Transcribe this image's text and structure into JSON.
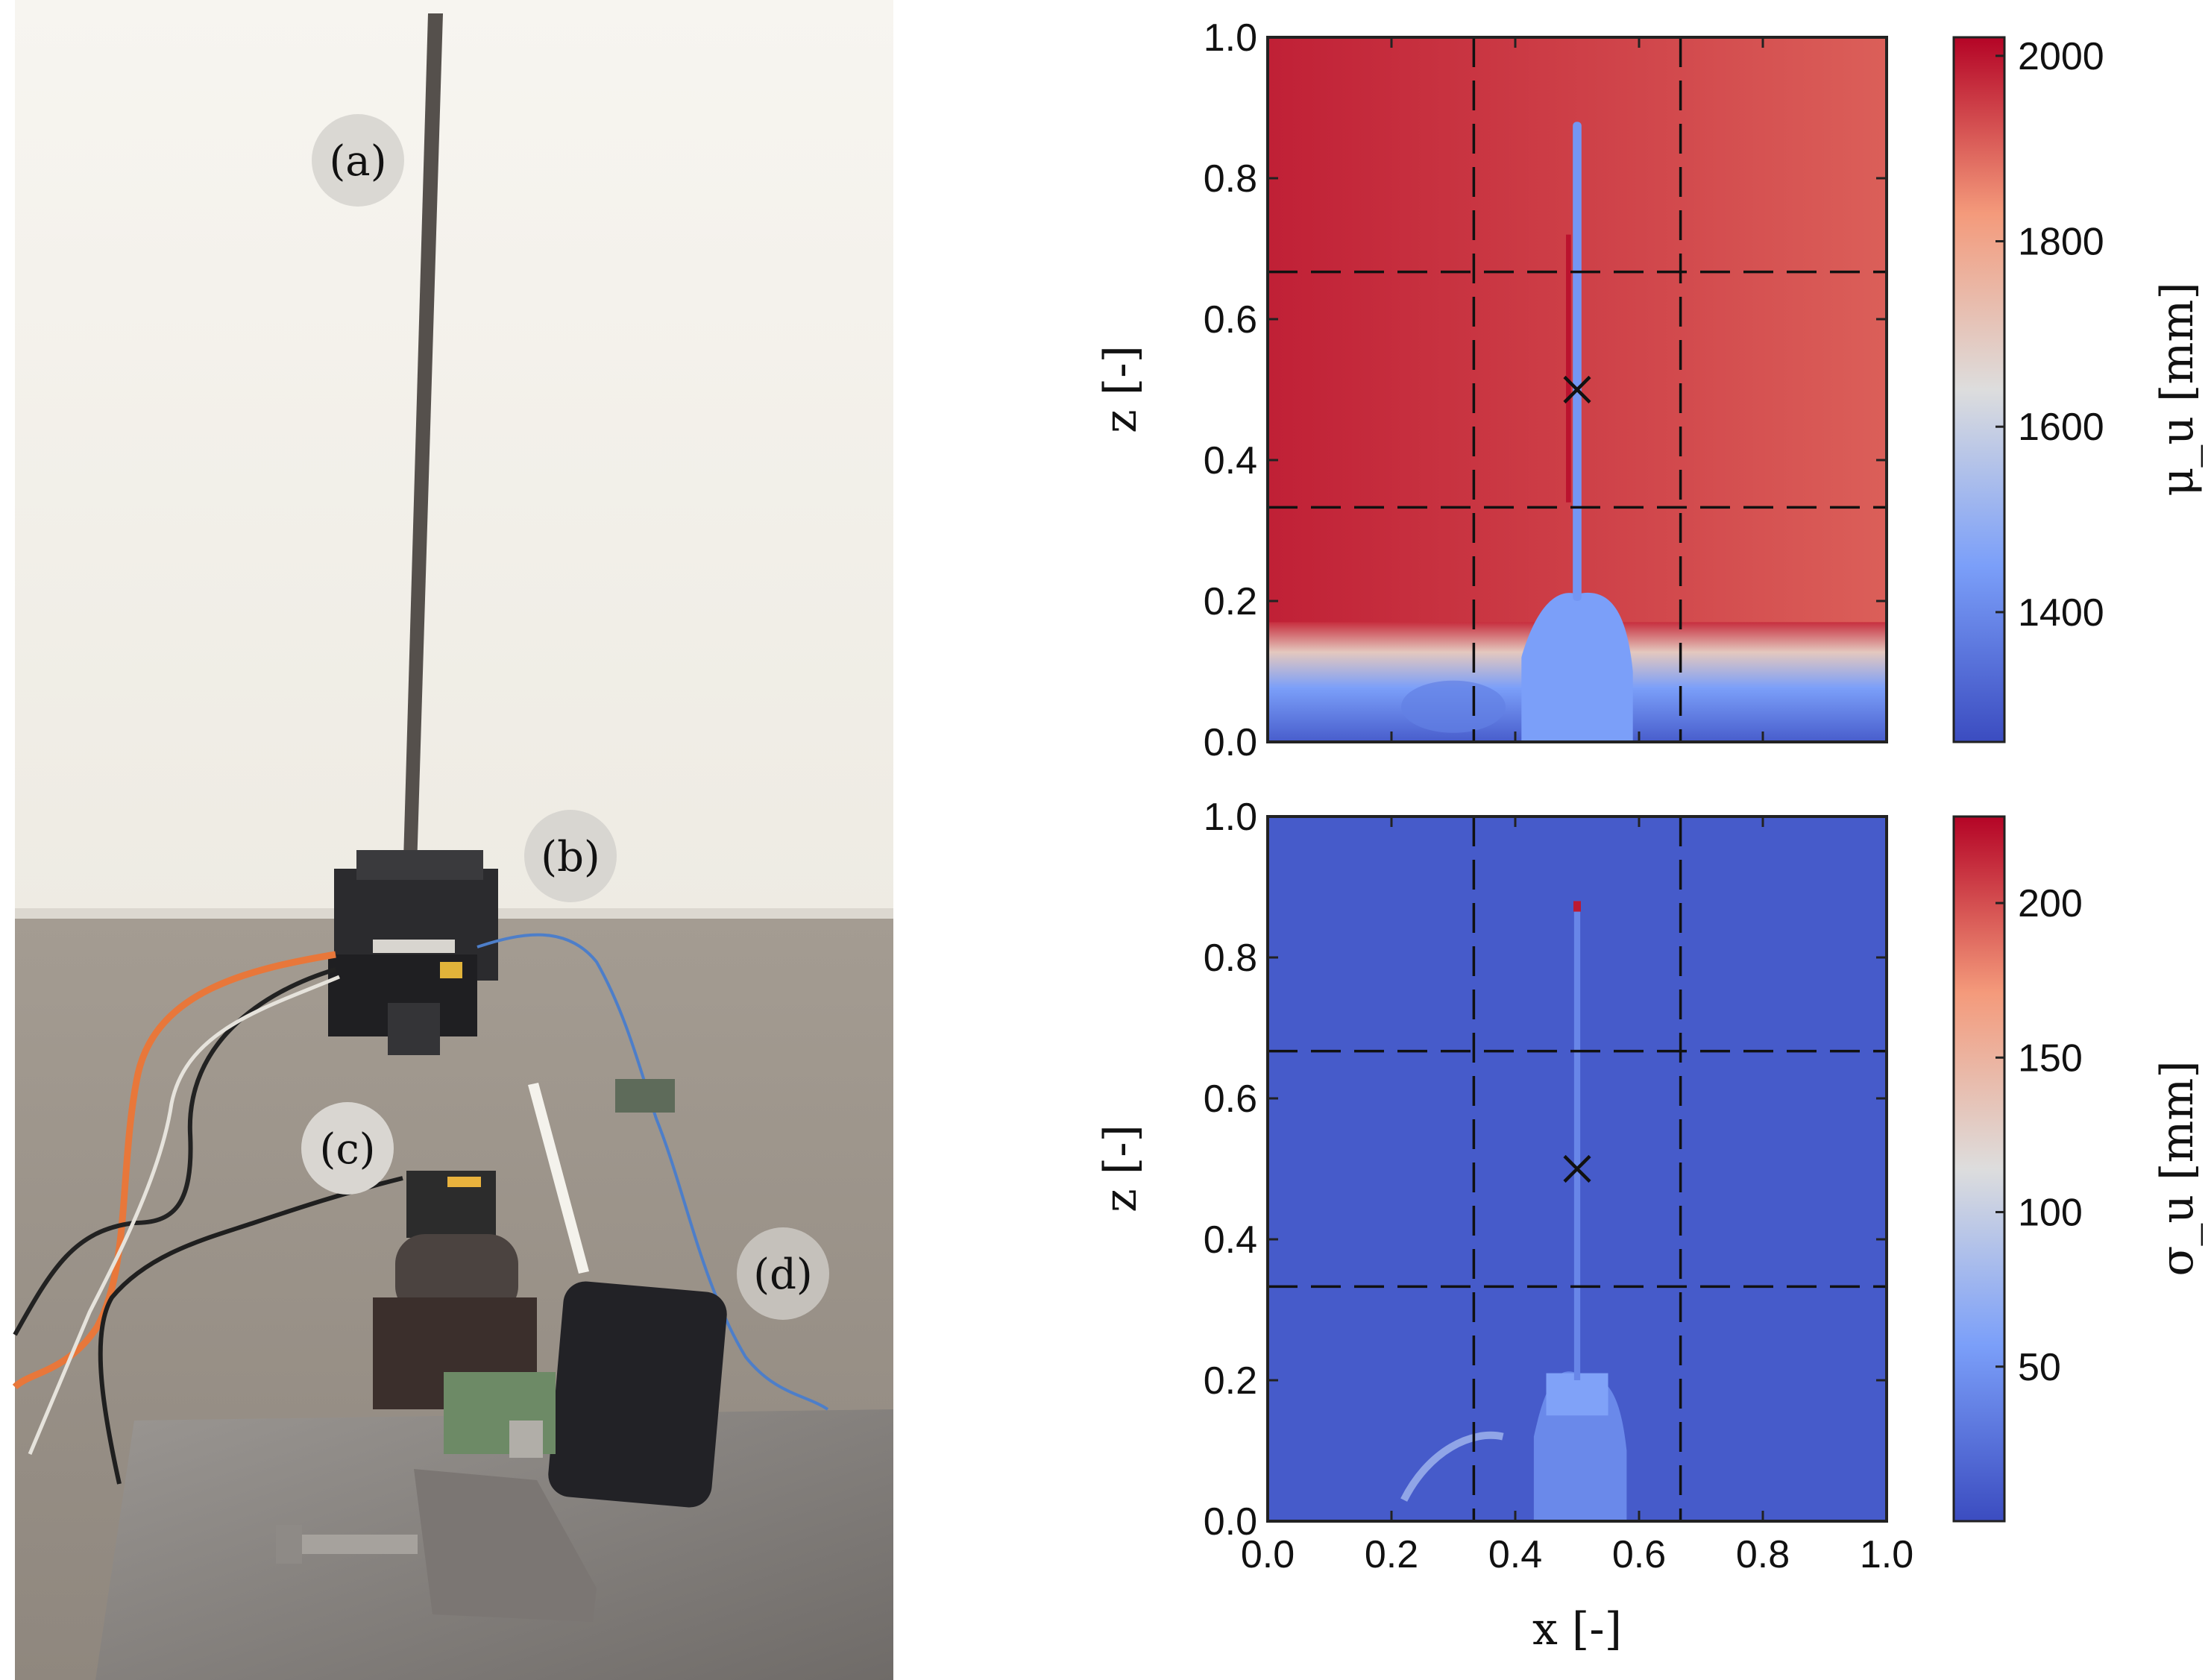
{
  "photo": {
    "callouts": [
      {
        "id": "a",
        "label": "(a)"
      },
      {
        "id": "b",
        "label": "(b)"
      },
      {
        "id": "c",
        "label": "(c)"
      },
      {
        "id": "d",
        "label": "(d)"
      }
    ],
    "colors": {
      "wall": "#f4f2ec",
      "floor": "#9d958b",
      "plate": "#8b8784",
      "rod": "#4a4744",
      "cable": "#e8773a",
      "blue_cable": "#4d7ec9"
    }
  },
  "chart_data": [
    {
      "type": "heatmap",
      "panel": "top",
      "quantity": "mu_u",
      "xlabel": "x [-]",
      "ylabel": "z [-]",
      "xlim": [
        0.0,
        1.0
      ],
      "ylim": [
        0.0,
        1.0
      ],
      "xticks": [
        "0.0",
        "0.2",
        "0.4",
        "0.6",
        "0.8",
        "1.0"
      ],
      "yticks": [
        "0.0",
        "0.2",
        "0.4",
        "0.6",
        "0.8",
        "1.0"
      ],
      "show_xtick_labels": false,
      "colorbar": {
        "label": "μ_u [mm]",
        "min": 1260,
        "max": 2020,
        "ticks": [
          1400,
          1600,
          1800,
          2000
        ],
        "tick_labels": [
          "1400",
          "1600",
          "1800",
          "2000"
        ]
      },
      "dashed_lines": {
        "x": [
          0.333,
          0.667
        ],
        "z": [
          0.333,
          0.667
        ]
      },
      "marker": {
        "x": 0.5,
        "z": 0.5,
        "symbol": "×"
      },
      "field": {
        "background": 1965,
        "bottom": 1300,
        "rod": 1430,
        "rod_x": 0.5,
        "rod_top": 0.88,
        "base_region": 1450
      }
    },
    {
      "type": "heatmap",
      "panel": "bottom",
      "quantity": "sigma_u",
      "xlabel": "x [-]",
      "ylabel": "z [-]",
      "xlim": [
        0.0,
        1.0
      ],
      "ylim": [
        0.0,
        1.0
      ],
      "xticks": [
        "0.0",
        "0.2",
        "0.4",
        "0.6",
        "0.8",
        "1.0"
      ],
      "yticks": [
        "0.0",
        "0.2",
        "0.4",
        "0.6",
        "0.8",
        "1.0"
      ],
      "show_xtick_labels": true,
      "colorbar": {
        "label": "σ_u [mm]",
        "min": 0,
        "max": 228,
        "ticks": [
          50,
          100,
          150,
          200
        ],
        "tick_labels": [
          "50",
          "100",
          "150",
          "200"
        ]
      },
      "dashed_lines": {
        "x": [
          0.333,
          0.667
        ],
        "z": [
          0.333,
          0.667
        ]
      },
      "marker": {
        "x": 0.5,
        "z": 0.5,
        "symbol": "×"
      },
      "field": {
        "background": 10,
        "rod": 40,
        "rod_x": 0.5,
        "rod_top": 0.88,
        "rod_tip": 220,
        "base_region": 45
      }
    }
  ]
}
